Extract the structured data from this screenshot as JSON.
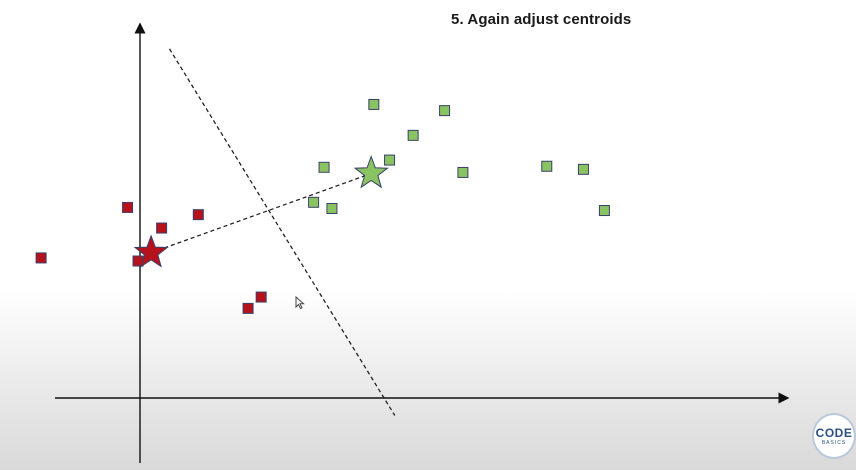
{
  "slide": {
    "title": "5. Again adjust centroids"
  },
  "colors": {
    "cluster_red": "#b5121b",
    "cluster_green": "#8ac462",
    "marker_stroke": "#3a3f6b",
    "axis": "#111111",
    "boundary": "#222222"
  },
  "clusters": [
    {
      "id": "red",
      "color": "#b5121b",
      "points": [
        [
          -9.5,
          13.6
        ],
        [
          -6.2,
          18.5
        ],
        [
          -4.9,
          16.5
        ],
        [
          -3.5,
          17.8
        ],
        [
          -5.8,
          13.3
        ],
        [
          -1.1,
          9.8
        ],
        [
          -1.6,
          8.7
        ]
      ],
      "centroid": [
        -5.3,
        14.1
      ]
    },
    {
      "id": "green",
      "color": "#8ac462",
      "points": [
        [
          3.2,
          28.5
        ],
        [
          4.7,
          25.5
        ],
        [
          5.9,
          27.9
        ],
        [
          1.3,
          22.4
        ],
        [
          0.9,
          19.0
        ],
        [
          1.6,
          18.4
        ],
        [
          3.8,
          23.1
        ],
        [
          6.6,
          21.9
        ],
        [
          9.8,
          22.5
        ],
        [
          11.2,
          22.2
        ],
        [
          12.0,
          18.2
        ]
      ],
      "centroid": [
        3.1,
        21.8
      ]
    }
  ],
  "centroid_link": {
    "from": "red",
    "to": "green",
    "style": "dashed"
  },
  "decision_boundary": {
    "from": [
      -4.6,
      33.9
    ],
    "to": [
      4.0,
      -1.7
    ],
    "style": "dashed"
  },
  "brand": {
    "main": "CODE",
    "sub": "BASICS"
  }
}
